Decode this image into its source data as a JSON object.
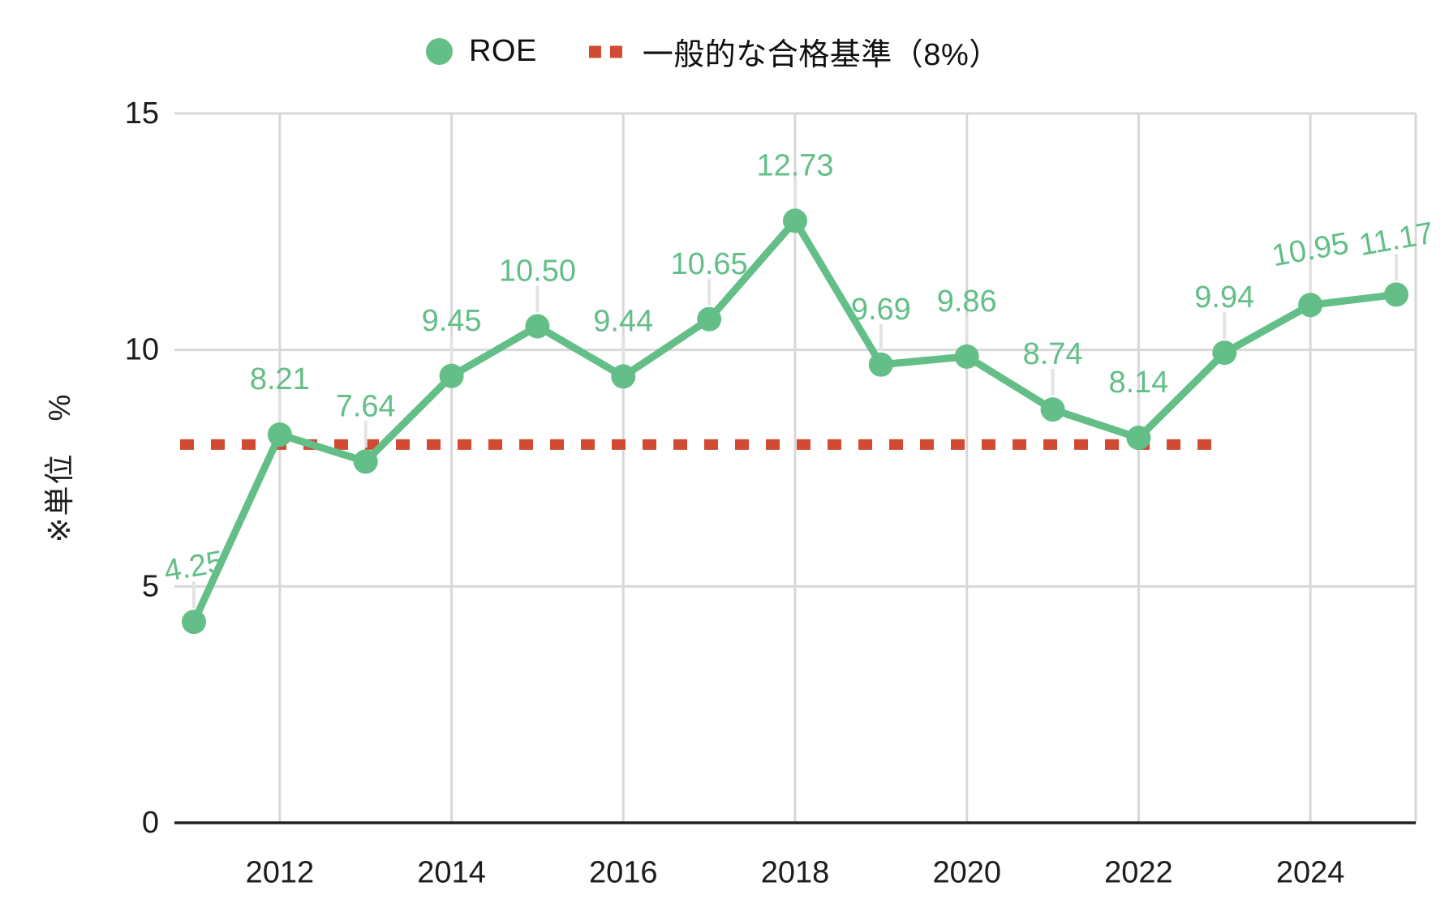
{
  "legend": {
    "roe_label": "ROE",
    "benchmark_label": "一般的な合格基準（8%）"
  },
  "y_axis": {
    "title": "※単位　%"
  },
  "colors": {
    "series_green": "#63BE87",
    "benchmark_red": "#D14A33",
    "grid": "#D8D8D8",
    "axis_line": "#222222",
    "tick_text": "#1c1c1c",
    "label_connector": "#E3E3E3",
    "background": "#ffffff"
  },
  "chart_data": {
    "type": "line",
    "title": "",
    "x": [
      2011,
      2012,
      2013,
      2014,
      2015,
      2016,
      2017,
      2018,
      2019,
      2020,
      2021,
      2022,
      2023,
      2024,
      2025
    ],
    "series": [
      {
        "name": "ROE",
        "values": [
          4.25,
          8.21,
          7.64,
          9.45,
          10.5,
          9.44,
          10.65,
          12.73,
          9.69,
          9.86,
          8.74,
          8.14,
          9.94,
          10.95,
          11.17
        ],
        "point_labels": [
          "4.25",
          "8.21",
          "7.64",
          "9.45",
          "10.50",
          "9.44",
          "10.65",
          "12.73",
          "9.69",
          "9.86",
          "8.74",
          "8.14",
          "9.94",
          "10.95",
          "11.17"
        ]
      },
      {
        "name": "一般的な合格基準（8%）",
        "type": "reference-line",
        "reference_value": 8
      }
    ],
    "ylim": [
      0,
      15
    ],
    "y_ticks": [
      0,
      5,
      10,
      15
    ],
    "x_ticks": [
      2012,
      2014,
      2016,
      2018,
      2020,
      2022,
      2024
    ],
    "grid": true,
    "legend_position": "top",
    "xlabel": "",
    "ylabel": "※単位　%"
  }
}
